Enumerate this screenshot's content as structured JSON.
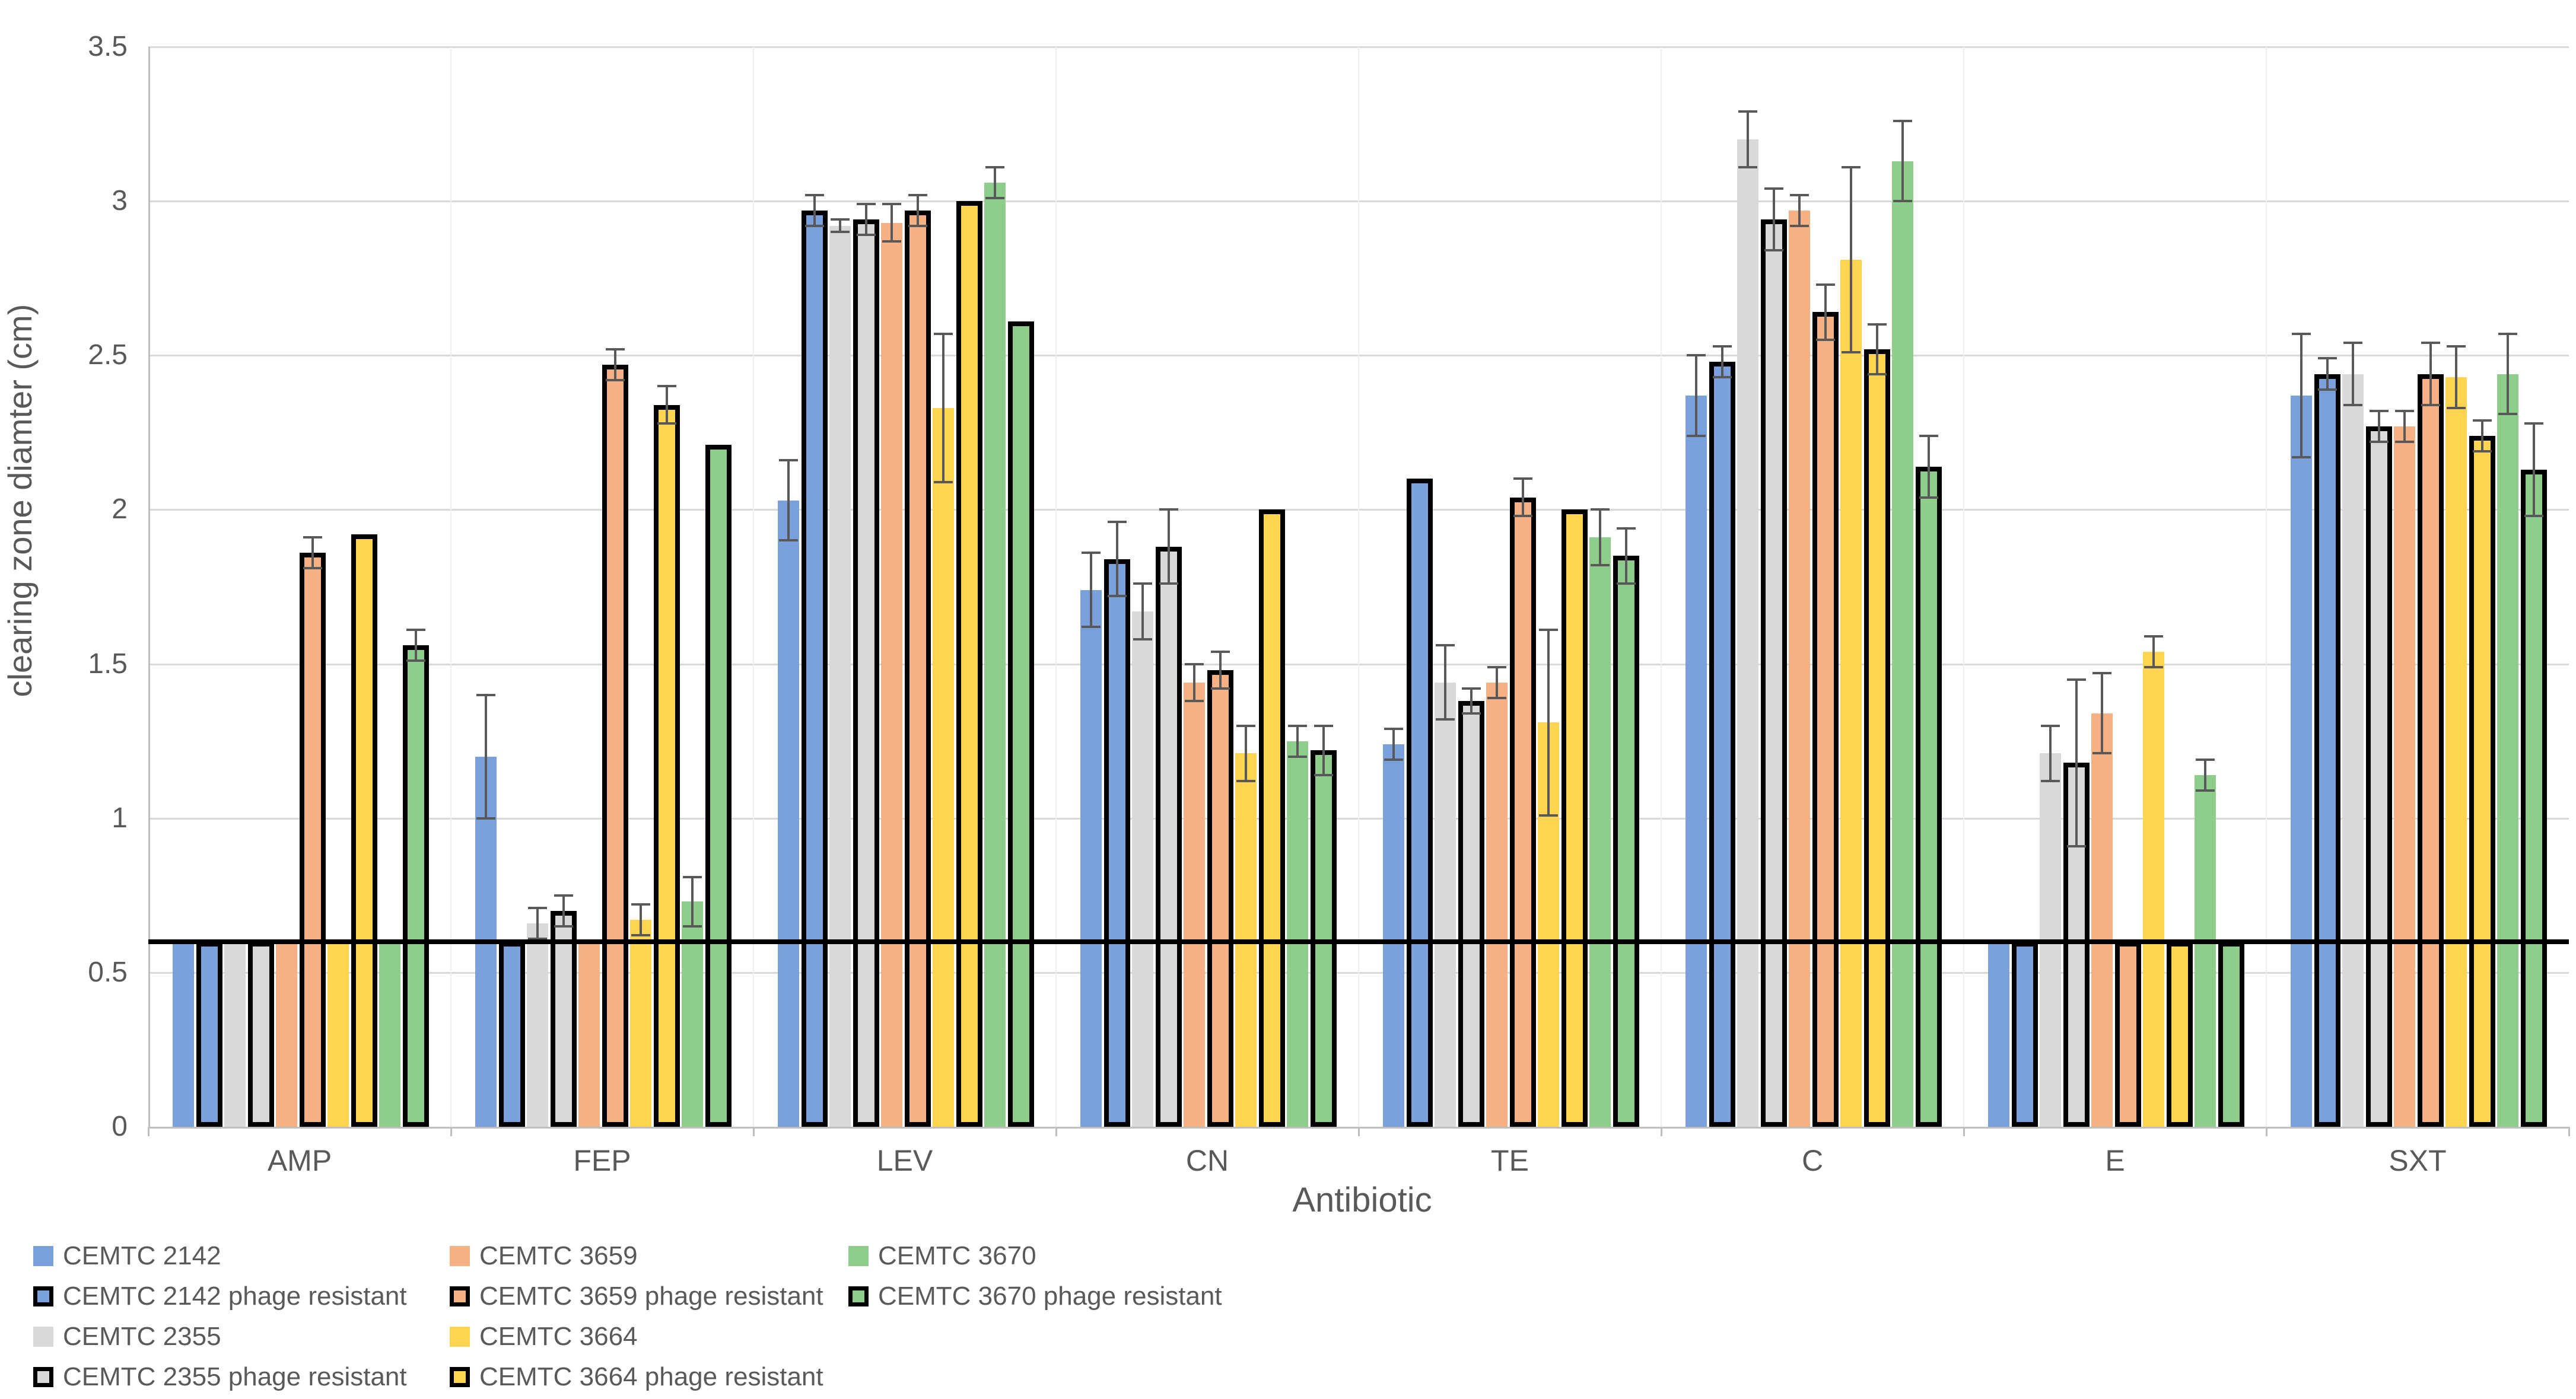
{
  "chart_data": {
    "type": "bar",
    "title": "",
    "xlabel": "Antibiotic",
    "ylabel": "clearing zone diamter (cm)",
    "ylim": [
      0,
      3.5
    ],
    "ytick_labels": [
      "0",
      "0.5",
      "1",
      "1.5",
      "2",
      "2.5",
      "3",
      "3.5"
    ],
    "grid": "horizontal",
    "legend_position": "bottom-left",
    "threshold_line": 0.6,
    "threshold_color": "#000000",
    "error_bar_color": "#595959",
    "categories": [
      "AMP",
      "FEP",
      "LEV",
      "CN",
      "TE",
      "C",
      "E",
      "SXT"
    ],
    "series": [
      {
        "name": "CEMTC 2142",
        "color": "#7BA1DC",
        "outlined": false,
        "values": [
          0.6,
          1.2,
          2.03,
          1.74,
          1.24,
          2.37,
          0.6,
          2.37
        ],
        "errors": [
          0,
          0.2,
          0.13,
          0.12,
          0.05,
          0.13,
          0,
          0.2
        ]
      },
      {
        "name": "CEMTC 2142 phage resistant",
        "color": "#7BA1DC",
        "outlined": true,
        "values": [
          0.6,
          0.6,
          2.97,
          1.84,
          2.1,
          2.48,
          0.6,
          2.44
        ],
        "errors": [
          0,
          0,
          0.05,
          0.12,
          0,
          0.05,
          0,
          0.05
        ]
      },
      {
        "name": "CEMTC 2355",
        "color": "#D9D9D9",
        "outlined": false,
        "values": [
          0.6,
          0.66,
          2.92,
          1.67,
          1.44,
          3.2,
          1.21,
          2.44
        ],
        "errors": [
          0,
          0.05,
          0.02,
          0.09,
          0.12,
          0.09,
          0.09,
          0.1
        ]
      },
      {
        "name": "CEMTC 2355 phage resistant",
        "color": "#D9D9D9",
        "outlined": true,
        "values": [
          0.6,
          0.7,
          2.94,
          1.88,
          1.38,
          2.94,
          1.18,
          2.27
        ],
        "errors": [
          0,
          0.05,
          0.05,
          0.12,
          0.04,
          0.1,
          0.27,
          0.05
        ]
      },
      {
        "name": "CEMTC 3659",
        "color": "#F5B183",
        "outlined": false,
        "values": [
          0.6,
          0.6,
          2.93,
          1.44,
          1.44,
          2.97,
          1.34,
          2.27
        ],
        "errors": [
          0,
          0,
          0.06,
          0.06,
          0.05,
          0.05,
          0.13,
          0.05
        ]
      },
      {
        "name": "CEMTC 3659 phage resistant",
        "color": "#F5B183",
        "outlined": true,
        "values": [
          1.86,
          2.47,
          2.97,
          1.48,
          2.04,
          2.64,
          0.6,
          2.44
        ],
        "errors": [
          0.05,
          0.05,
          0.05,
          0.06,
          0.06,
          0.09,
          0,
          0.1
        ]
      },
      {
        "name": "CEMTC 3664",
        "color": "#FFD451",
        "outlined": false,
        "values": [
          0.6,
          0.67,
          2.33,
          1.21,
          1.31,
          2.81,
          1.54,
          2.43
        ],
        "errors": [
          0,
          0.05,
          0.24,
          0.09,
          0.3,
          0.3,
          0.05,
          0.1
        ]
      },
      {
        "name": "CEMTC 3664 phage resistant",
        "color": "#FFD451",
        "outlined": true,
        "values": [
          1.92,
          2.34,
          3.0,
          2.0,
          2.0,
          2.52,
          0.6,
          2.24
        ],
        "errors": [
          0,
          0.06,
          0,
          0,
          0,
          0.08,
          0,
          0.05
        ]
      },
      {
        "name": "CEMTC 3670",
        "color": "#8FCD8C",
        "outlined": false,
        "values": [
          0.6,
          0.73,
          3.06,
          1.25,
          1.91,
          3.13,
          1.14,
          2.44
        ],
        "errors": [
          0,
          0.08,
          0.05,
          0.05,
          0.09,
          0.13,
          0.05,
          0.13
        ]
      },
      {
        "name": "CEMTC 3670 phage resistant",
        "color": "#8FCD8C",
        "outlined": true,
        "values": [
          1.56,
          2.21,
          2.61,
          1.22,
          1.85,
          2.14,
          0.6,
          2.13
        ],
        "errors": [
          0.05,
          0,
          0,
          0.08,
          0.09,
          0.1,
          0,
          0.15
        ]
      }
    ],
    "legend_columns": [
      [
        0,
        1,
        2,
        3
      ],
      [
        4,
        5,
        6,
        7
      ],
      [
        8,
        9
      ]
    ]
  }
}
